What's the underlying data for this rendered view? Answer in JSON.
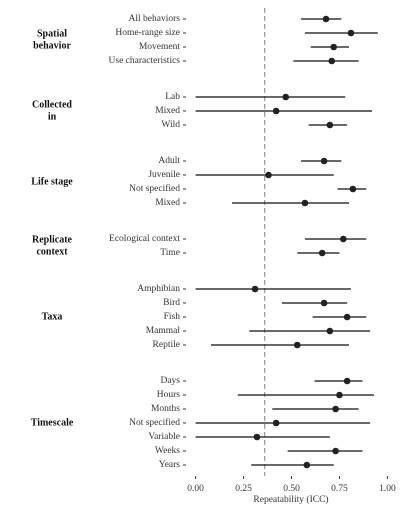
{
  "chart_data": {
    "type": "forest",
    "x_label": "Repeatability (ICC)",
    "xlim": [
      -0.05,
      1.05
    ],
    "xticks": [
      {
        "value": 0,
        "label": "0.00"
      },
      {
        "value": 0.25,
        "label": "0.25"
      },
      {
        "value": 0.5,
        "label": "0.50"
      },
      {
        "value": 0.75,
        "label": "0.75"
      },
      {
        "value": 1,
        "label": "1.00"
      }
    ],
    "reference_line": 0.36,
    "point_color": "#222222",
    "groups": [
      {
        "label": [
          "Spatial",
          "behavior"
        ],
        "categories": [
          "All behaviors",
          "Home-range size",
          "Movement",
          "Use characteristics"
        ],
        "values": [
          0.68,
          0.81,
          0.72,
          0.71
        ],
        "lower": [
          0.55,
          0.57,
          0.6,
          0.51
        ],
        "upper": [
          0.76,
          0.95,
          0.8,
          0.85
        ]
      },
      {
        "label": [
          "Collected",
          "in"
        ],
        "categories": [
          "Lab",
          "Mixed",
          "Wild"
        ],
        "values": [
          0.47,
          0.42,
          0.7
        ],
        "lower": [
          0,
          0,
          0.59
        ],
        "upper": [
          0.78,
          0.92,
          0.79
        ]
      },
      {
        "label": [
          "Life stage"
        ],
        "categories": [
          "Adult",
          "Juvenile",
          "Not specified",
          "Mixed"
        ],
        "values": [
          0.67,
          0.38,
          0.82,
          0.57
        ],
        "lower": [
          0.55,
          0,
          0.74,
          0.19
        ],
        "upper": [
          0.76,
          0.72,
          0.89,
          0.8
        ]
      },
      {
        "label": [
          "Replicate",
          "context"
        ],
        "categories": [
          "Ecological context",
          "Time"
        ],
        "values": [
          0.77,
          0.66
        ],
        "lower": [
          0.57,
          0.53
        ],
        "upper": [
          0.89,
          0.75
        ]
      },
      {
        "label": [
          "Taxa"
        ],
        "categories": [
          "Amphibian",
          "Bird",
          "Fish",
          "Mammal",
          "Reptile"
        ],
        "values": [
          0.31,
          0.67,
          0.79,
          0.7,
          0.53
        ],
        "lower": [
          0,
          0.45,
          0.61,
          0.28,
          0.08
        ],
        "upper": [
          0.81,
          0.79,
          0.89,
          0.91,
          0.8
        ]
      },
      {
        "label": [
          "Timescale"
        ],
        "categories": [
          "Days",
          "Hours",
          "Months",
          "Not specified",
          "Variable",
          "Weeks",
          "Years"
        ],
        "values": [
          0.79,
          0.75,
          0.73,
          0.42,
          0.32,
          0.73,
          0.58
        ],
        "lower": [
          0.62,
          0.22,
          0.4,
          0,
          0,
          0.48,
          0.29
        ],
        "upper": [
          0.87,
          0.93,
          0.85,
          0.91,
          0.7,
          0.87,
          0.72
        ]
      }
    ]
  }
}
